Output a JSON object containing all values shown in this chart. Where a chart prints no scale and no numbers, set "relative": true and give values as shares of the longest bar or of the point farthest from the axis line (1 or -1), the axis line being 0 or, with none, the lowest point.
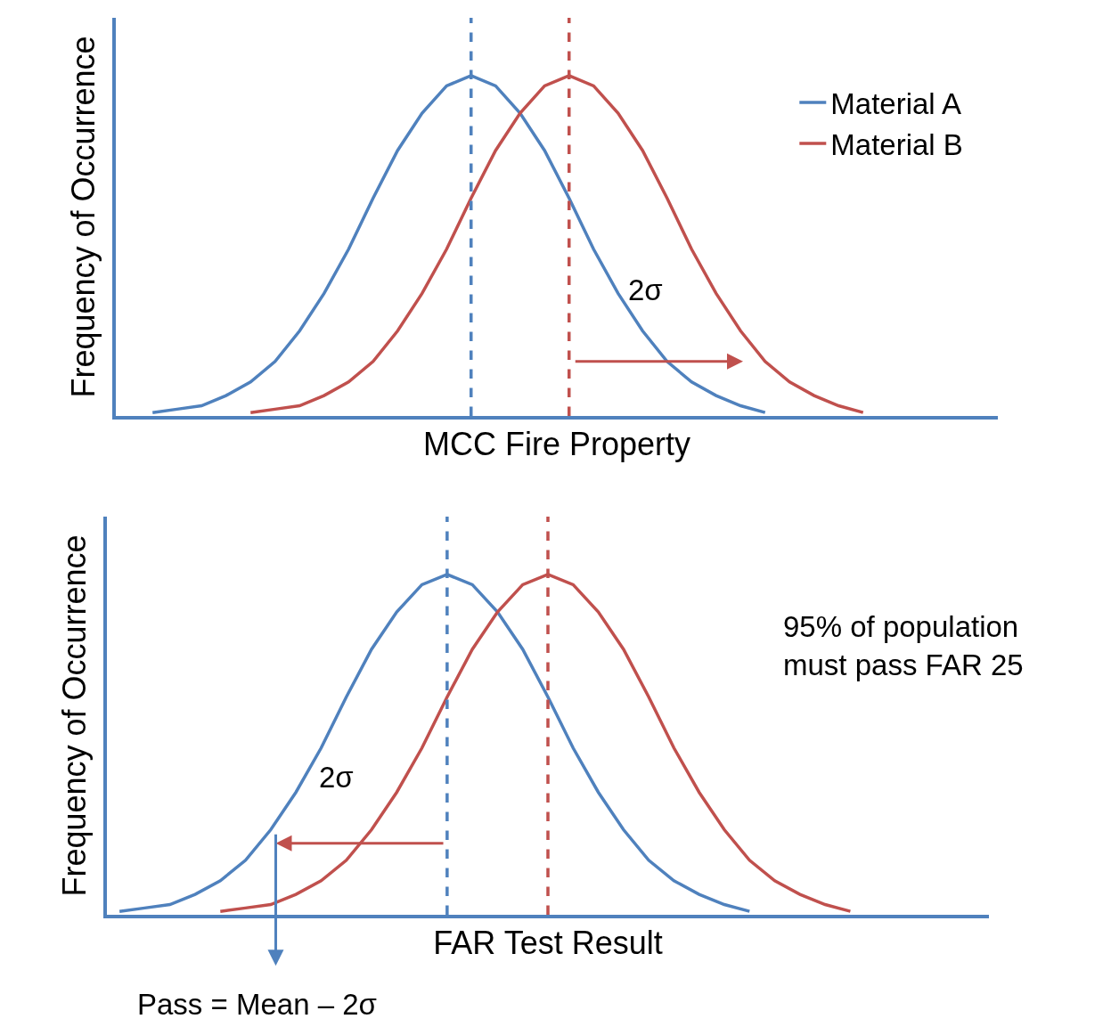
{
  "chart_data": [
    {
      "type": "line",
      "relative": true,
      "xlabel": "MCC Fire Property",
      "ylabel": "Frequency of Occurrence",
      "legend": "top right",
      "marker": "none",
      "categories": [
        null,
        null,
        null,
        null,
        null,
        null,
        null,
        null,
        null,
        null,
        null,
        null,
        null,
        null,
        null,
        null,
        null,
        null,
        null,
        null,
        null,
        null,
        null,
        null,
        null,
        null,
        null,
        null,
        null,
        null,
        null,
        null,
        null,
        null,
        null,
        null
      ],
      "series": [
        {
          "name": "Material A",
          "color": "#4f81bd",
          "values": [
            null,
            0.01,
            0.02,
            0.03,
            0.06,
            0.1,
            0.16,
            0.25,
            0.36,
            0.49,
            0.64,
            0.78,
            0.89,
            0.97,
            1,
            0.97,
            0.89,
            0.78,
            0.64,
            0.49,
            0.36,
            0.25,
            0.16,
            0.1,
            0.06,
            0.03,
            0.01,
            null,
            null,
            null,
            null,
            null,
            null,
            null,
            null,
            null
          ]
        },
        {
          "name": "Material B",
          "color": "#c0504d",
          "values": [
            null,
            null,
            null,
            null,
            null,
            0.01,
            0.02,
            0.03,
            0.06,
            0.1,
            0.16,
            0.25,
            0.36,
            0.49,
            0.64,
            0.78,
            0.89,
            0.97,
            1,
            0.97,
            0.89,
            0.78,
            0.64,
            0.49,
            0.36,
            0.25,
            0.16,
            0.1,
            0.06,
            0.03,
            0.01,
            null,
            null,
            null,
            null,
            null
          ]
        }
      ],
      "annotations": [
        "2σ"
      ]
    },
    {
      "type": "line",
      "relative": true,
      "xlabel": "FAR Test Result",
      "ylabel": "Frequency of Occurrence",
      "legend": false,
      "marker": "none",
      "categories": [
        null,
        null,
        null,
        null,
        null,
        null,
        null,
        null,
        null,
        null,
        null,
        null,
        null,
        null,
        null,
        null,
        null,
        null,
        null,
        null,
        null,
        null,
        null,
        null,
        null,
        null,
        null,
        null,
        null,
        null,
        null,
        null,
        null,
        null,
        null
      ],
      "series": [
        {
          "color": "#4f81bd",
          "values": [
            0.01,
            0.02,
            0.03,
            0.06,
            0.1,
            0.16,
            0.25,
            0.36,
            0.49,
            0.64,
            0.78,
            0.89,
            0.97,
            1,
            0.97,
            0.89,
            0.78,
            0.64,
            0.49,
            0.36,
            0.25,
            0.16,
            0.1,
            0.06,
            0.03,
            0.01,
            null,
            null,
            null,
            null,
            null,
            null,
            null,
            null,
            null
          ]
        },
        {
          "color": "#c0504d",
          "values": [
            null,
            null,
            null,
            null,
            0.01,
            0.02,
            0.03,
            0.06,
            0.1,
            0.16,
            0.25,
            0.36,
            0.49,
            0.64,
            0.78,
            0.89,
            0.97,
            1,
            0.97,
            0.89,
            0.78,
            0.64,
            0.49,
            0.36,
            0.25,
            0.16,
            0.1,
            0.06,
            0.03,
            0.01,
            null,
            null,
            null,
            null,
            null
          ]
        }
      ],
      "annotations": [
        "95% of population must pass FAR 25",
        "2σ",
        "Pass = Mean – 2σ"
      ]
    }
  ]
}
